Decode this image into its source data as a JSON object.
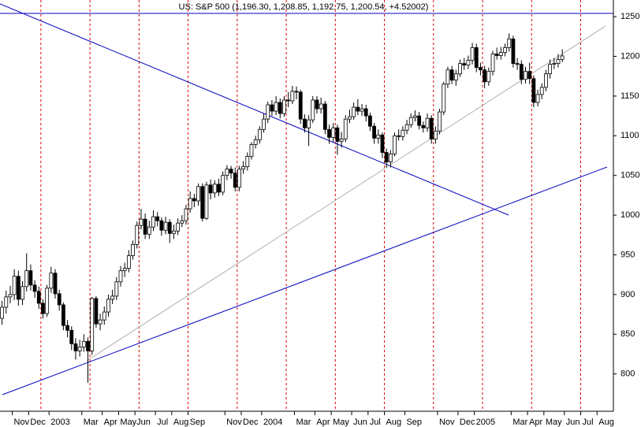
{
  "chart_data": {
    "type": "candlestick",
    "title": "US: S&P 500 (1,196.30, 1,208.85, 1,192.75, 1,200.54, +4.52002)",
    "categories": [
      null,
      null,
      null,
      "Nov",
      null,
      null,
      null,
      "Dec",
      null,
      null,
      null,
      null,
      "2003",
      null,
      null,
      null,
      null,
      null,
      null,
      null,
      "Mar",
      null,
      null,
      null,
      null,
      "Apr",
      null,
      null,
      null,
      "May",
      null,
      null,
      null,
      "Jun",
      null,
      null,
      null,
      null,
      "Jul",
      null,
      null,
      null,
      "Aug",
      null,
      null,
      null,
      "Sep",
      null,
      null,
      null,
      null,
      null,
      null,
      null,
      null,
      "Nov",
      null,
      null,
      null,
      "Dec",
      null,
      null,
      null,
      null,
      "2004",
      null,
      null,
      null,
      null,
      null,
      null,
      null,
      "Mar",
      null,
      null,
      null,
      null,
      "Apr",
      null,
      null,
      null,
      "May",
      null,
      null,
      null,
      null,
      "Jun",
      null,
      null,
      null,
      "Jul",
      null,
      null,
      null,
      "Aug",
      null,
      null,
      null,
      null,
      "Sep",
      null,
      null,
      null,
      null,
      null,
      null,
      null,
      "Nov",
      null,
      null,
      null,
      null,
      "Dec",
      null,
      null,
      null,
      "2005",
      null,
      null,
      null,
      null,
      null,
      null,
      null,
      null,
      "Mar",
      null,
      null,
      null,
      "Apr",
      null,
      null,
      null,
      "May",
      null,
      null,
      null,
      null,
      "Jun",
      null,
      null,
      null,
      "Jul",
      null,
      null,
      null,
      "Aug",
      null,
      null,
      null
    ],
    "open": [
      870,
      884,
      897,
      900,
      923,
      894,
      910,
      930,
      912,
      904,
      889,
      876,
      908,
      927,
      901,
      887,
      861,
      855,
      838,
      829,
      834,
      841,
      829,
      895,
      863,
      868,
      878,
      894,
      898,
      916,
      930,
      933,
      949,
      963,
      987,
      995,
      976,
      985,
      998,
      993,
      981,
      991,
      977,
      980,
      990,
      993,
      1008,
      1021,
      1018,
      1036,
      996,
      1038,
      1028,
      1039,
      1029,
      1050,
      1058,
      1053,
      1035,
      1058,
      1061,
      1074,
      1089,
      1095,
      1108,
      1121,
      1139,
      1131,
      1142,
      1128,
      1145,
      1144,
      1156,
      1155,
      1121,
      1110,
      1120,
      1145,
      1134,
      1140,
      1108,
      1098,
      1110,
      1093,
      1096,
      1121,
      1124,
      1136,
      1131,
      1134,
      1125,
      1112,
      1097,
      1101,
      1079,
      1067,
      1077,
      1100,
      1099,
      1107,
      1114,
      1123,
      1125,
      1113,
      1110,
      1122,
      1096,
      1106,
      1130,
      1165,
      1183,
      1170,
      1178,
      1191,
      1189,
      1195,
      1211,
      1186,
      1183,
      1168,
      1181,
      1203,
      1201,
      1205,
      1211,
      1222,
      1191,
      1190,
      1171,
      1181,
      1172,
      1142,
      1152,
      1161,
      1178,
      1190,
      1191,
      1196.3,
      null,
      null,
      null,
      null,
      null,
      null,
      null,
      null,
      null,
      null,
      null,
      null
    ],
    "high": [
      892,
      905,
      911,
      932,
      930,
      917,
      952,
      938,
      918,
      910,
      894,
      912,
      935,
      932,
      906,
      890,
      868,
      860,
      845,
      843,
      850,
      846,
      897,
      898,
      876,
      885,
      900,
      906,
      922,
      936,
      940,
      956,
      968,
      992,
      1008,
      1002,
      993,
      1006,
      1004,
      997,
      998,
      995,
      988,
      996,
      1000,
      1013,
      1030,
      1027,
      1040,
      1040,
      1042,
      1045,
      1044,
      1046,
      1055,
      1063,
      1062,
      1060,
      1062,
      1068,
      1079,
      1092,
      1100,
      1112,
      1128,
      1143,
      1145,
      1150,
      1147,
      1150,
      1155,
      1163,
      1162,
      1158,
      1127,
      1126,
      1150,
      1150,
      1148,
      1144,
      1114,
      1116,
      1114,
      1105,
      1126,
      1133,
      1142,
      1146,
      1140,
      1139,
      1129,
      1116,
      1108,
      1104,
      1084,
      1082,
      1104,
      1108,
      1112,
      1120,
      1128,
      1132,
      1130,
      1118,
      1128,
      1126,
      1112,
      1134,
      1168,
      1187,
      1188,
      1183,
      1196,
      1198,
      1201,
      1217,
      1216,
      1192,
      1188,
      1186,
      1207,
      1211,
      1212,
      1216,
      1229,
      1226,
      1198,
      1195,
      1187,
      1192,
      1176,
      1158,
      1166,
      1183,
      1196,
      1198,
      1203,
      1208.85,
      null,
      null,
      null,
      null,
      null,
      null,
      null,
      null,
      null,
      null,
      null,
      null
    ],
    "low": [
      862,
      876,
      889,
      893,
      886,
      887,
      904,
      905,
      896,
      882,
      870,
      872,
      902,
      895,
      880,
      855,
      846,
      830,
      818,
      822,
      828,
      789,
      824,
      858,
      855,
      862,
      872,
      888,
      893,
      910,
      922,
      928,
      944,
      958,
      982,
      970,
      970,
      980,
      986,
      974,
      976,
      965,
      970,
      975,
      985,
      988,
      1003,
      1010,
      1012,
      992,
      994,
      1020,
      1022,
      1024,
      1025,
      1044,
      1046,
      1030,
      1030,
      1052,
      1056,
      1070,
      1084,
      1090,
      1104,
      1116,
      1125,
      1126,
      1122,
      1124,
      1136,
      1140,
      1146,
      1115,
      1104,
      1087,
      1116,
      1128,
      1128,
      1102,
      1090,
      1092,
      1076,
      1085,
      1092,
      1116,
      1120,
      1126,
      1125,
      1118,
      1106,
      1090,
      1090,
      1072,
      1060,
      1060,
      1074,
      1094,
      1094,
      1102,
      1110,
      1118,
      1108,
      1104,
      1105,
      1090,
      1090,
      1102,
      1126,
      1160,
      1165,
      1163,
      1174,
      1183,
      1184,
      1190,
      1180,
      1176,
      1160,
      1163,
      1176,
      1196,
      1196,
      1200,
      1206,
      1186,
      1183,
      1165,
      1166,
      1165,
      1136,
      1137,
      1146,
      1156,
      1172,
      1184,
      1186,
      1192.75,
      null,
      null,
      null,
      null,
      null,
      null,
      null,
      null,
      null,
      null,
      null,
      null
    ],
    "close": [
      884,
      897,
      900,
      923,
      894,
      910,
      930,
      912,
      904,
      889,
      876,
      908,
      927,
      901,
      887,
      861,
      855,
      838,
      829,
      834,
      841,
      829,
      895,
      863,
      868,
      878,
      894,
      898,
      916,
      930,
      933,
      949,
      963,
      987,
      995,
      976,
      985,
      998,
      993,
      981,
      991,
      977,
      980,
      990,
      993,
      1008,
      1021,
      1018,
      1036,
      996,
      1038,
      1028,
      1039,
      1029,
      1050,
      1058,
      1053,
      1035,
      1058,
      1061,
      1074,
      1089,
      1095,
      1108,
      1121,
      1139,
      1131,
      1142,
      1128,
      1145,
      1144,
      1156,
      1155,
      1121,
      1110,
      1120,
      1145,
      1134,
      1140,
      1108,
      1098,
      1110,
      1093,
      1096,
      1121,
      1124,
      1136,
      1131,
      1134,
      1125,
      1112,
      1097,
      1101,
      1079,
      1067,
      1077,
      1100,
      1099,
      1107,
      1114,
      1123,
      1125,
      1113,
      1110,
      1122,
      1096,
      1106,
      1130,
      1165,
      1183,
      1170,
      1178,
      1191,
      1189,
      1195,
      1211,
      1186,
      1183,
      1168,
      1181,
      1203,
      1201,
      1205,
      1211,
      1222,
      1191,
      1190,
      1171,
      1181,
      1172,
      1142,
      1152,
      1161,
      1178,
      1190,
      1191,
      1196,
      1200.54,
      null,
      null,
      null,
      null,
      null,
      null,
      null,
      null,
      null,
      null,
      null,
      null
    ],
    "up_color": "#ffffff",
    "down_color": "#000000",
    "ylim": [
      753,
      1271
    ],
    "yticks": [
      800,
      850,
      900,
      950,
      1000,
      1050,
      1100,
      1150,
      1200,
      1250
    ],
    "vgrid": true
  }
}
